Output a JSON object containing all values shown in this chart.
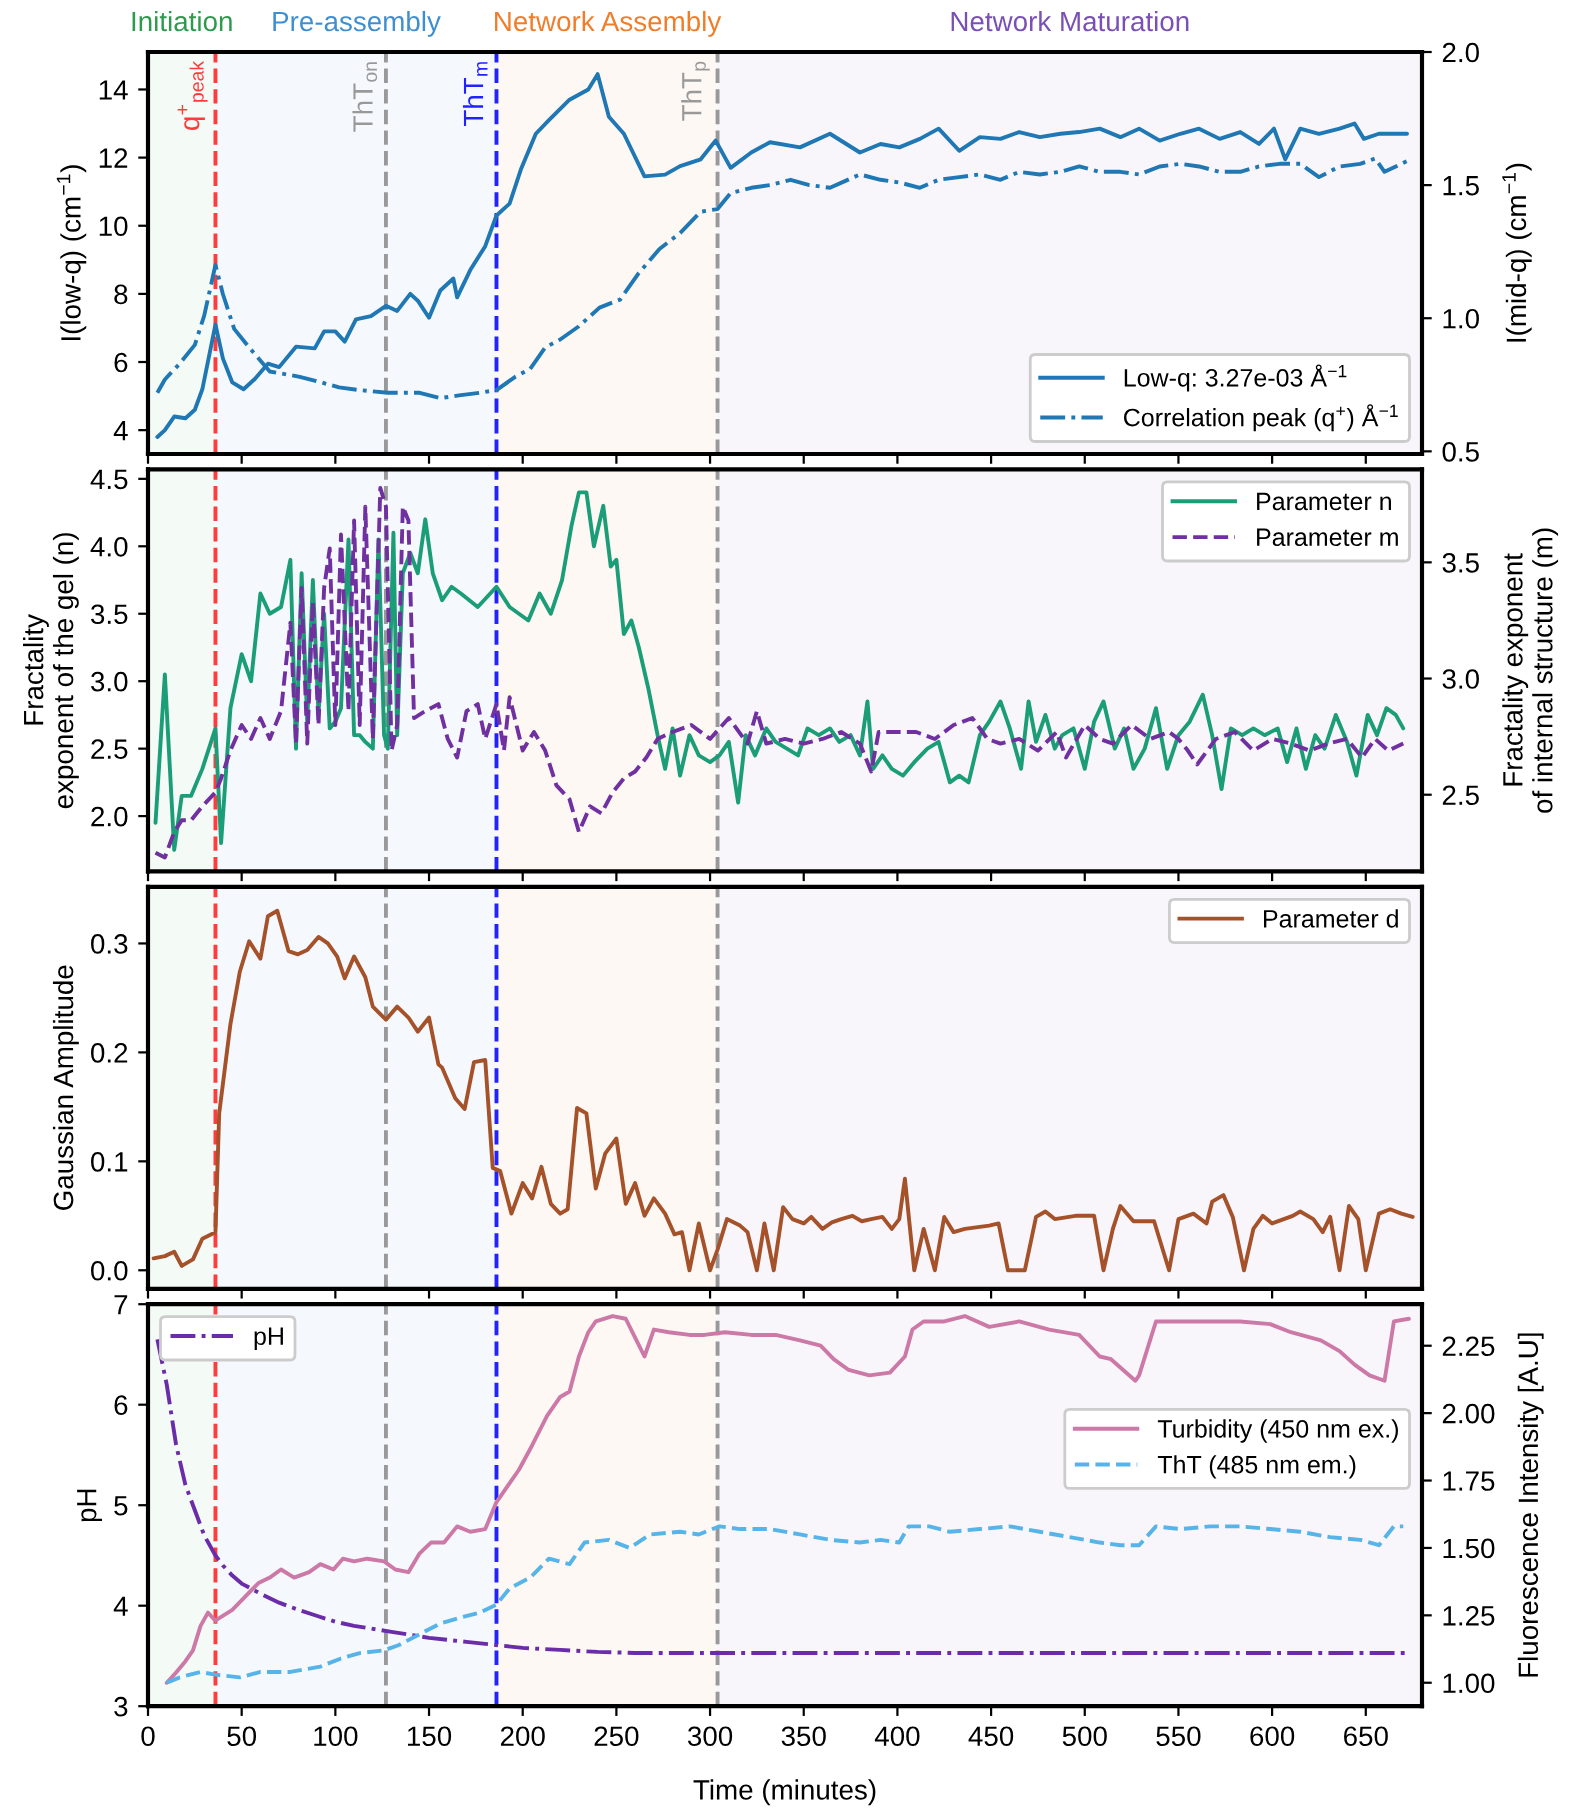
{
  "chart_data": [
    {
      "type": "line",
      "ylabel": "I(low-q) (cm$^{−1}$)",
      "y2label": "I(mid-q) (cm$^{−1}$)",
      "xlim": [
        0,
        680
      ],
      "xticks": [
        0,
        50,
        100,
        150,
        200,
        250,
        300,
        350,
        400,
        450,
        500,
        550,
        600,
        650
      ],
      "ylim": [
        3.3,
        15.1
      ],
      "yticks": [
        4,
        6,
        8,
        10,
        12,
        14
      ],
      "y2lim": [
        0.49,
        2.0
      ],
      "y2ticks": [
        0.5,
        {
          "value": 1.0,
          "label": "1.0"
        },
        1.5,
        {
          "value": 2.0,
          "label": "2.0"
        }
      ],
      "tick_labels": "y",
      "legend": "bottom right",
      "bands": [
        {
          "axis": "x",
          "from": 0,
          "to": 36,
          "label": "Initiation",
          "color": "#2e9a4e"
        },
        {
          "axis": "x",
          "from": 36,
          "to": 186,
          "label": "Pre-assembly",
          "color": "#3f8fd0"
        },
        {
          "axis": "x",
          "from": 186,
          "to": 304,
          "label": "Network Assembly",
          "color": "#f07d2a"
        },
        {
          "axis": "x",
          "from": 304,
          "to": 680,
          "label": "Network Maturation",
          "color": "#7a50b4"
        }
      ],
      "ref_lines": [
        {
          "axis": "x",
          "value": 36,
          "label": "q$^{+}$$_{peak}$",
          "color": "#ff3b3b",
          "line_style": "dashed"
        },
        {
          "axis": "x",
          "value": 127,
          "label": "ThT$_{on}$",
          "color": "#999999",
          "line_style": "dashed"
        },
        {
          "axis": "x",
          "value": 186,
          "label": "ThT$_{m}$",
          "color": "#2222ff",
          "line_style": "dashed"
        },
        {
          "axis": "x",
          "value": 304,
          "label": "ThT$_{p}$",
          "color": "#999999",
          "line_style": "dashed"
        }
      ],
      "series": [
        {
          "name": "Low-q: 3.27e-03 Å$^{−1}$",
          "color": "#1f77b4",
          "line_style": "solid",
          "axis": "y",
          "x": [
            5,
            9,
            14,
            20,
            25,
            29,
            36,
            40,
            45,
            51,
            57,
            64,
            70,
            79,
            89,
            94,
            100,
            105,
            111,
            119,
            127,
            133,
            140,
            144,
            150,
            156,
            163,
            165,
            172,
            180,
            186,
            193,
            199,
            207,
            214,
            225,
            235,
            240,
            246,
            254,
            265,
            276,
            284,
            295,
            303,
            311,
            322,
            332,
            348,
            364,
            380,
            391,
            401,
            412,
            422,
            433,
            444,
            455,
            465,
            476,
            487,
            497,
            508,
            519,
            529,
            540,
            551,
            561,
            572,
            583,
            593,
            601,
            607,
            615,
            625,
            636,
            644,
            649,
            657,
            663,
            672
          ],
          "values": [
            3.8,
            4.0,
            4.4,
            4.35,
            4.6,
            5.2,
            7.1,
            6.1,
            5.4,
            5.2,
            5.5,
            5.95,
            5.85,
            6.45,
            6.4,
            6.9,
            6.9,
            6.6,
            7.25,
            7.35,
            7.65,
            7.5,
            8.0,
            7.8,
            7.3,
            8.1,
            8.45,
            7.9,
            8.7,
            9.4,
            10.3,
            10.65,
            11.65,
            12.7,
            13.1,
            13.7,
            14.0,
            14.45,
            13.2,
            12.7,
            11.45,
            11.5,
            11.75,
            11.95,
            12.5,
            11.7,
            12.15,
            12.45,
            12.3,
            12.7,
            12.15,
            12.4,
            12.3,
            12.55,
            12.85,
            12.2,
            12.6,
            12.55,
            12.75,
            12.6,
            12.7,
            12.75,
            12.85,
            12.6,
            12.85,
            12.5,
            12.7,
            12.85,
            12.55,
            12.75,
            12.4,
            12.85,
            11.95,
            12.85,
            12.7,
            12.85,
            13.0,
            12.55,
            12.7,
            12.7,
            12.7
          ]
        },
        {
          "name": "Correlation peak (q$^{+}$) Å$^{−1}$",
          "color": "#1f77b4",
          "line_style": "dashdot",
          "axis": "y2",
          "x": [
            5,
            9,
            17,
            25,
            30,
            36,
            40,
            46,
            54,
            65,
            81,
            92,
            102,
            113,
            128,
            145,
            156,
            166,
            177,
            186,
            196,
            204,
            212,
            220,
            230,
            241,
            252,
            262,
            273,
            284,
            295,
            304,
            311,
            322,
            332,
            343,
            353,
            364,
            380,
            391,
            401,
            412,
            422,
            433,
            444,
            455,
            465,
            476,
            487,
            497,
            508,
            519,
            529,
            540,
            551,
            561,
            572,
            583,
            593,
            604,
            615,
            625,
            636,
            647,
            655,
            660,
            672
          ],
          "values": [
            0.72,
            0.77,
            0.83,
            0.9,
            1.01,
            1.2,
            1.09,
            0.96,
            0.89,
            0.8,
            0.78,
            0.76,
            0.74,
            0.73,
            0.72,
            0.72,
            0.7,
            0.71,
            0.72,
            0.73,
            0.78,
            0.81,
            0.89,
            0.92,
            0.97,
            1.04,
            1.07,
            1.17,
            1.26,
            1.32,
            1.4,
            1.41,
            1.47,
            1.49,
            1.5,
            1.52,
            1.5,
            1.49,
            1.54,
            1.52,
            1.51,
            1.49,
            1.52,
            1.53,
            1.54,
            1.52,
            1.55,
            1.54,
            1.55,
            1.57,
            1.55,
            1.55,
            1.54,
            1.57,
            1.58,
            1.57,
            1.55,
            1.55,
            1.57,
            1.58,
            1.58,
            1.53,
            1.57,
            1.58,
            1.6,
            1.55,
            1.59
          ]
        }
      ]
    },
    {
      "type": "line",
      "ylabel": "Fractality\nexponent of the gel (n)",
      "y2label": "Fractality exponent\nof internal structure (m)",
      "xlim": [
        0,
        680
      ],
      "xticks": [
        0,
        50,
        100,
        150,
        200,
        250,
        300,
        350,
        400,
        450,
        500,
        550,
        600,
        650
      ],
      "ylim": [
        1.59,
        4.57
      ],
      "yticks": [
        {
          "value": 2.0,
          "label": "2.0"
        },
        2.5,
        {
          "value": 3.0,
          "label": "3.0"
        },
        3.5,
        {
          "value": 4.0,
          "label": "4.0"
        },
        4.5
      ],
      "y2lim": [
        2.17,
        3.9
      ],
      "y2ticks": [
        2.5,
        {
          "value": 3.0,
          "label": "3.0"
        },
        3.5
      ],
      "tick_labels": "y",
      "legend": "top right",
      "bands": [
        {
          "axis": "x",
          "from": 0,
          "to": 36,
          "color": "#2e9a4e"
        },
        {
          "axis": "x",
          "from": 36,
          "to": 186,
          "color": "#3f8fd0"
        },
        {
          "axis": "x",
          "from": 186,
          "to": 304,
          "color": "#f07d2a"
        },
        {
          "axis": "x",
          "from": 304,
          "to": 680,
          "color": "#7a50b4"
        }
      ],
      "ref_lines": [
        {
          "axis": "x",
          "value": 36,
          "color": "#ff3b3b",
          "line_style": "dashed"
        },
        {
          "axis": "x",
          "value": 127,
          "color": "#999999",
          "line_style": "dashed"
        },
        {
          "axis": "x",
          "value": 186,
          "color": "#2222ff",
          "line_style": "dashed"
        },
        {
          "axis": "x",
          "value": 304,
          "color": "#999999",
          "line_style": "dashed"
        }
      ],
      "series": [
        {
          "name": "Parameter n",
          "color": "#1b9e77",
          "line_style": "solid",
          "axis": "y",
          "x": [
            4,
            9,
            14,
            18,
            23,
            29,
            36,
            39,
            44,
            50,
            55,
            60,
            65,
            71,
            76,
            79,
            82,
            85,
            88,
            91,
            94,
            97,
            100,
            103,
            107,
            110,
            113,
            116,
            120,
            123,
            126,
            128,
            131,
            133,
            136,
            140,
            144,
            148,
            152,
            157,
            162,
            167,
            176,
            186,
            193,
            203,
            209,
            215,
            221,
            226,
            230,
            234,
            238,
            243,
            247,
            250,
            254,
            258,
            262,
            267,
            272,
            276,
            280,
            284,
            289,
            294,
            300,
            305,
            310,
            315,
            319,
            324,
            330,
            335,
            341,
            347,
            352,
            358,
            364,
            369,
            375,
            380,
            384,
            387,
            392,
            397,
            403,
            409,
            416,
            422,
            428,
            433,
            438,
            444,
            449,
            455,
            460,
            466,
            470,
            474,
            479,
            484,
            488,
            494,
            500,
            505,
            510,
            516,
            521,
            526,
            532,
            538,
            544,
            550,
            556,
            563,
            568,
            573,
            578,
            584,
            590,
            596,
            603,
            608,
            613,
            618,
            623,
            628,
            634,
            640,
            645,
            651,
            656,
            661,
            666,
            670
          ],
          "values": [
            1.95,
            3.05,
            1.75,
            2.15,
            2.15,
            2.35,
            2.65,
            1.8,
            2.8,
            3.2,
            3.0,
            3.65,
            3.5,
            3.55,
            3.9,
            2.5,
            3.8,
            2.7,
            3.75,
            2.75,
            3.5,
            2.65,
            2.7,
            2.8,
            4.05,
            2.6,
            2.6,
            2.55,
            2.5,
            4.05,
            2.6,
            2.5,
            4.1,
            2.6,
            3.8,
            3.95,
            3.8,
            4.2,
            3.8,
            3.6,
            3.7,
            3.65,
            3.55,
            3.7,
            3.55,
            3.45,
            3.65,
            3.5,
            3.75,
            4.15,
            4.4,
            4.4,
            4.0,
            4.3,
            3.85,
            3.9,
            3.35,
            3.45,
            3.25,
            2.95,
            2.6,
            2.35,
            2.65,
            2.3,
            2.6,
            2.45,
            2.4,
            2.45,
            2.55,
            2.1,
            2.6,
            2.45,
            2.65,
            2.55,
            2.5,
            2.45,
            2.65,
            2.6,
            2.65,
            2.55,
            2.6,
            2.45,
            2.85,
            2.35,
            2.45,
            2.35,
            2.3,
            2.4,
            2.5,
            2.55,
            2.25,
            2.3,
            2.25,
            2.6,
            2.7,
            2.85,
            2.65,
            2.35,
            2.85,
            2.55,
            2.75,
            2.5,
            2.6,
            2.65,
            2.35,
            2.7,
            2.85,
            2.5,
            2.65,
            2.35,
            2.5,
            2.8,
            2.35,
            2.6,
            2.7,
            2.9,
            2.6,
            2.2,
            2.65,
            2.6,
            2.65,
            2.6,
            2.65,
            2.4,
            2.65,
            2.35,
            2.6,
            2.5,
            2.75,
            2.55,
            2.3,
            2.75,
            2.6,
            2.8,
            2.75,
            2.65
          ]
        },
        {
          "name": "Parameter m",
          "color": "#7030a0",
          "line_style": "dashed",
          "axis": "y2",
          "x": [
            4,
            9,
            14,
            18,
            23,
            29,
            36,
            39,
            44,
            50,
            55,
            60,
            65,
            71,
            76,
            79,
            82,
            85,
            88,
            91,
            94,
            97,
            100,
            103,
            107,
            110,
            113,
            116,
            120,
            124,
            127,
            130,
            133,
            136,
            139,
            142,
            148,
            155,
            160,
            165,
            170,
            176,
            180,
            186,
            190,
            193,
            200,
            206,
            212,
            218,
            225,
            230,
            236,
            242,
            248,
            254,
            260,
            266,
            272,
            280,
            290,
            300,
            310,
            320,
            325,
            330,
            340,
            350,
            360,
            370,
            380,
            386,
            390,
            400,
            410,
            420,
            430,
            440,
            448,
            455,
            465,
            475,
            485,
            490,
            500,
            508,
            515,
            525,
            535,
            545,
            550,
            555,
            560,
            570,
            580,
            590,
            600,
            610,
            620,
            630,
            640,
            648,
            655,
            662,
            670
          ],
          "values": [
            2.25,
            2.23,
            2.34,
            2.39,
            2.39,
            2.45,
            2.51,
            2.57,
            2.69,
            2.8,
            2.74,
            2.83,
            2.74,
            2.86,
            3.24,
            2.72,
            3.39,
            2.72,
            3.33,
            2.8,
            3.39,
            3.56,
            2.8,
            3.62,
            2.86,
            3.68,
            2.8,
            3.74,
            2.74,
            3.82,
            3.74,
            2.69,
            2.8,
            3.74,
            3.68,
            2.83,
            2.86,
            2.89,
            2.74,
            2.66,
            2.86,
            2.89,
            2.74,
            2.89,
            2.69,
            2.92,
            2.69,
            2.77,
            2.69,
            2.54,
            2.48,
            2.34,
            2.45,
            2.42,
            2.51,
            2.57,
            2.6,
            2.66,
            2.74,
            2.77,
            2.8,
            2.74,
            2.83,
            2.72,
            2.86,
            2.72,
            2.74,
            2.72,
            2.74,
            2.77,
            2.72,
            2.6,
            2.77,
            2.77,
            2.77,
            2.74,
            2.8,
            2.83,
            2.74,
            2.72,
            2.74,
            2.69,
            2.77,
            2.66,
            2.8,
            2.74,
            2.72,
            2.8,
            2.74,
            2.77,
            2.74,
            2.69,
            2.63,
            2.74,
            2.77,
            2.69,
            2.74,
            2.72,
            2.69,
            2.72,
            2.74,
            2.66,
            2.74,
            2.69,
            2.72
          ]
        }
      ]
    },
    {
      "type": "line",
      "ylabel": "Gaussian Amplitude",
      "xlim": [
        0,
        680
      ],
      "xticks": [
        0,
        50,
        100,
        150,
        200,
        250,
        300,
        350,
        400,
        450,
        500,
        550,
        600,
        650
      ],
      "ylim": [
        -0.017,
        0.352
      ],
      "yticks": [
        {
          "value": 0.0,
          "label": "0.0"
        },
        0.1,
        0.2,
        0.3
      ],
      "tick_labels": "y",
      "legend": "top right",
      "bands": [
        {
          "axis": "x",
          "from": 0,
          "to": 36,
          "color": "#2e9a4e"
        },
        {
          "axis": "x",
          "from": 36,
          "to": 186,
          "color": "#3f8fd0"
        },
        {
          "axis": "x",
          "from": 186,
          "to": 304,
          "color": "#f07d2a"
        },
        {
          "axis": "x",
          "from": 304,
          "to": 680,
          "color": "#7a50b4"
        }
      ],
      "ref_lines": [
        {
          "axis": "x",
          "value": 36,
          "color": "#ff3b3b",
          "line_style": "dashed"
        },
        {
          "axis": "x",
          "value": 127,
          "color": "#999999",
          "line_style": "dashed"
        },
        {
          "axis": "x",
          "value": 186,
          "color": "#2222ff",
          "line_style": "dashed"
        },
        {
          "axis": "x",
          "value": 304,
          "color": "#999999",
          "line_style": "dashed"
        }
      ],
      "series": [
        {
          "name": "Parameter d",
          "color": "#a5522a",
          "line_style": "solid",
          "axis": "y",
          "x": [
            3,
            9,
            14,
            18,
            24,
            29,
            36,
            38,
            44,
            49,
            54,
            60,
            64,
            69,
            75,
            80,
            85,
            91,
            96,
            101,
            105,
            110,
            116,
            120,
            127,
            133,
            139,
            144,
            150,
            155,
            157,
            164,
            169,
            174,
            180,
            184,
            188,
            194,
            200,
            205,
            210,
            215,
            220,
            224,
            229,
            234,
            239,
            244,
            250,
            255,
            260,
            265,
            270,
            276,
            281,
            285,
            289,
            294,
            300,
            304,
            309,
            316,
            320,
            325,
            329,
            334,
            339,
            344,
            350,
            354,
            360,
            365,
            370,
            376,
            381,
            386,
            392,
            397,
            401,
            404,
            409,
            414,
            420,
            425,
            430,
            436,
            449,
            454,
            459,
            468,
            474,
            479,
            484,
            495,
            505,
            510,
            515,
            519,
            526,
            537,
            545,
            550,
            558,
            565,
            568,
            574,
            579,
            585,
            590,
            595,
            600,
            611,
            615,
            622,
            627,
            631,
            636,
            641,
            646,
            650,
            657,
            663,
            669,
            675
          ],
          "values": [
            0.011,
            0.013,
            0.017,
            0.004,
            0.01,
            0.029,
            0.035,
            0.144,
            0.226,
            0.274,
            0.302,
            0.286,
            0.325,
            0.33,
            0.293,
            0.29,
            0.294,
            0.306,
            0.3,
            0.288,
            0.268,
            0.288,
            0.269,
            0.242,
            0.23,
            0.242,
            0.232,
            0.219,
            0.232,
            0.189,
            0.186,
            0.158,
            0.148,
            0.191,
            0.193,
            0.094,
            0.091,
            0.052,
            0.08,
            0.066,
            0.095,
            0.061,
            0.052,
            0.056,
            0.149,
            0.144,
            0.075,
            0.107,
            0.121,
            0.061,
            0.08,
            0.05,
            0.066,
            0.052,
            0.033,
            0.035,
            0.0,
            0.043,
            0.0,
            0.019,
            0.047,
            0.041,
            0.035,
            0.0,
            0.043,
            0.0,
            0.058,
            0.047,
            0.043,
            0.049,
            0.038,
            0.044,
            0.047,
            0.05,
            0.045,
            0.047,
            0.049,
            0.038,
            0.047,
            0.084,
            0.0,
            0.038,
            0.0,
            0.049,
            0.035,
            0.038,
            0.041,
            0.043,
            0.0,
            0.0,
            0.049,
            0.054,
            0.047,
            0.05,
            0.05,
            0.0,
            0.038,
            0.059,
            0.045,
            0.045,
            0.0,
            0.047,
            0.052,
            0.043,
            0.063,
            0.069,
            0.049,
            0.0,
            0.038,
            0.05,
            0.043,
            0.05,
            0.054,
            0.047,
            0.035,
            0.049,
            0.0,
            0.059,
            0.047,
            0.0,
            0.052,
            0.056,
            0.052,
            0.049
          ]
        }
      ]
    },
    {
      "type": "line",
      "xlabel": "Time (minutes)",
      "ylabel": "pH",
      "y2label": "Fluorescence Intensity [A.U]",
      "xlim": [
        0,
        680
      ],
      "xticks": [
        0,
        50,
        100,
        150,
        200,
        250,
        300,
        350,
        400,
        450,
        500,
        550,
        600,
        650
      ],
      "ylim": [
        3,
        7
      ],
      "yticks": [
        3,
        4,
        5,
        6,
        7
      ],
      "y2lim": [
        0.913,
        2.404
      ],
      "y2ticks": [
        {
          "value": 1.0,
          "label": "1.00"
        },
        {
          "value": 1.25,
          "label": "1.25"
        },
        {
          "value": 1.5,
          "label": "1.50"
        },
        {
          "value": 1.75,
          "label": "1.75"
        },
        {
          "value": 2.0,
          "label": "2.00"
        },
        {
          "value": 2.25,
          "label": "2.25"
        }
      ],
      "legend": [
        "top left",
        "right"
      ],
      "bands": [
        {
          "axis": "x",
          "from": 0,
          "to": 36,
          "color": "#2e9a4e"
        },
        {
          "axis": "x",
          "from": 36,
          "to": 186,
          "color": "#3f8fd0"
        },
        {
          "axis": "x",
          "from": 186,
          "to": 304,
          "color": "#f07d2a"
        },
        {
          "axis": "x",
          "from": 304,
          "to": 680,
          "color": "#7a50b4"
        }
      ],
      "ref_lines": [
        {
          "axis": "x",
          "value": 36,
          "color": "#ff3b3b",
          "line_style": "dashed"
        },
        {
          "axis": "x",
          "value": 127,
          "color": "#999999",
          "line_style": "dashed"
        },
        {
          "axis": "x",
          "value": 186,
          "color": "#2222ff",
          "line_style": "dashed"
        },
        {
          "axis": "x",
          "value": 304,
          "color": "#999999",
          "line_style": "dashed"
        }
      ],
      "series": [
        {
          "name": "pH",
          "color": "#6a2ca8",
          "line_style": "dashdot",
          "axis": "y",
          "x": [
            5,
            10,
            15,
            20,
            25,
            30,
            36,
            40,
            45,
            50,
            60,
            70,
            80,
            90,
            100,
            110,
            120,
            130,
            140,
            150,
            160,
            170,
            180,
            190,
            200,
            220,
            240,
            260,
            300,
            400,
            500,
            600,
            672
          ],
          "values": [
            6.65,
            6.2,
            5.6,
            5.2,
            4.95,
            4.7,
            4.5,
            4.4,
            4.3,
            4.22,
            4.12,
            4.03,
            3.96,
            3.9,
            3.84,
            3.8,
            3.77,
            3.74,
            3.71,
            3.68,
            3.66,
            3.64,
            3.62,
            3.6,
            3.58,
            3.56,
            3.54,
            3.53,
            3.53,
            3.53,
            3.53,
            3.53,
            3.53
          ]
        },
        {
          "name": "Turbidity (450 nm ex.)",
          "color": "#cc79a7",
          "line_style": "solid",
          "axis": "y2",
          "x": [
            10,
            14,
            20,
            24,
            28,
            32,
            36,
            38,
            45,
            52,
            59,
            65,
            71,
            78,
            86,
            92,
            99,
            104,
            110,
            117,
            126,
            132,
            139,
            145,
            151,
            158,
            165,
            172,
            180,
            186,
            192,
            198,
            205,
            213,
            220,
            225,
            230,
            235,
            239,
            248,
            255,
            260,
            265,
            270,
            278,
            289,
            297,
            308,
            322,
            335,
            348,
            359,
            366,
            374,
            385,
            396,
            404,
            408,
            414,
            425,
            436,
            449,
            465,
            481,
            497,
            508,
            514,
            527,
            529,
            538,
            551,
            567,
            583,
            599,
            610,
            626,
            636,
            644,
            652,
            660,
            665,
            673
          ],
          "values": [
            1.0,
            1.03,
            1.08,
            1.12,
            1.21,
            1.26,
            1.23,
            1.24,
            1.27,
            1.32,
            1.37,
            1.39,
            1.42,
            1.39,
            1.41,
            1.44,
            1.42,
            1.46,
            1.45,
            1.46,
            1.45,
            1.42,
            1.41,
            1.48,
            1.52,
            1.52,
            1.58,
            1.56,
            1.57,
            1.67,
            1.73,
            1.79,
            1.88,
            1.99,
            2.06,
            2.08,
            2.21,
            2.3,
            2.34,
            2.36,
            2.35,
            2.28,
            2.21,
            2.31,
            2.3,
            2.29,
            2.29,
            2.3,
            2.29,
            2.29,
            2.27,
            2.25,
            2.2,
            2.16,
            2.14,
            2.15,
            2.21,
            2.31,
            2.34,
            2.34,
            2.36,
            2.32,
            2.34,
            2.31,
            2.29,
            2.21,
            2.2,
            2.12,
            2.14,
            2.34,
            2.34,
            2.34,
            2.34,
            2.33,
            2.3,
            2.27,
            2.23,
            2.18,
            2.14,
            2.12,
            2.34,
            2.35
          ]
        },
        {
          "name": "ThT (485 nm em.)",
          "color": "#56b4e9",
          "line_style": "dashed",
          "axis": "y2",
          "x": [
            10,
            17,
            28,
            36,
            49,
            60,
            76,
            92,
            103,
            113,
            126,
            134,
            145,
            156,
            166,
            177,
            186,
            193,
            204,
            214,
            225,
            233,
            246,
            257,
            268,
            284,
            294,
            305,
            316,
            332,
            348,
            364,
            380,
            391,
            401,
            406,
            417,
            428,
            444,
            460,
            476,
            492,
            508,
            519,
            529,
            538,
            551,
            567,
            583,
            599,
            615,
            631,
            647,
            657,
            665,
            670
          ],
          "values": [
            1.0,
            1.02,
            1.04,
            1.03,
            1.02,
            1.04,
            1.04,
            1.06,
            1.09,
            1.11,
            1.12,
            1.14,
            1.18,
            1.22,
            1.24,
            1.26,
            1.29,
            1.35,
            1.39,
            1.46,
            1.44,
            1.52,
            1.53,
            1.5,
            1.55,
            1.56,
            1.55,
            1.58,
            1.57,
            1.57,
            1.55,
            1.53,
            1.52,
            1.53,
            1.52,
            1.58,
            1.58,
            1.56,
            1.57,
            1.58,
            1.56,
            1.54,
            1.52,
            1.51,
            1.51,
            1.58,
            1.57,
            1.58,
            1.58,
            1.57,
            1.56,
            1.54,
            1.53,
            1.51,
            1.58,
            1.58
          ]
        }
      ]
    }
  ]
}
